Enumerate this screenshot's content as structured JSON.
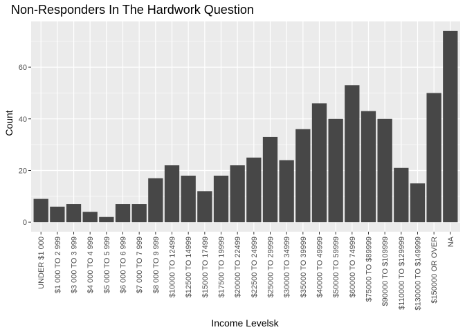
{
  "chart_data": {
    "type": "bar",
    "title": "Non-Responders In The Hardwork Question",
    "xlabel": "Income Levelsk",
    "ylabel": "Count",
    "categories": [
      "UNDER $1 000",
      "$1 000 TO 2 999",
      "$3 000 TO 3 999",
      "$4 000 TO 4 999",
      "$5 000 TO 5 999",
      "$6 000 TO 6 999",
      "$7 000 TO 7 999",
      "$8 000 TO 9 999",
      "$10000 TO 12499",
      "$12500 TO 14999",
      "$15000 TO 17499",
      "$17500 TO 19999",
      "$20000 TO 22499",
      "$22500 TO 24999",
      "$25000 TO 29999",
      "$30000 TO 34999",
      "$35000 TO 39999",
      "$40000 TO 49999",
      "$50000 TO 59999",
      "$60000 TO 74999",
      "$75000 TO $89999",
      "$90000 TO $109999",
      "$110000 TO $129999",
      "$130000 TO $149999",
      "$150000 OR OVER",
      "NA"
    ],
    "values": [
      9,
      6,
      7,
      4,
      2,
      7,
      7,
      17,
      22,
      18,
      12,
      18,
      22,
      25,
      33,
      24,
      36,
      46,
      40,
      53,
      43,
      40,
      21,
      15,
      50,
      74
    ],
    "ylim": [
      -3.7,
      77.7
    ],
    "yticks": [
      0,
      20,
      40,
      60
    ],
    "grid": true,
    "bar_color": "#474747",
    "panel_color": "#EBEBEB",
    "grid_color": "#ffffff"
  }
}
